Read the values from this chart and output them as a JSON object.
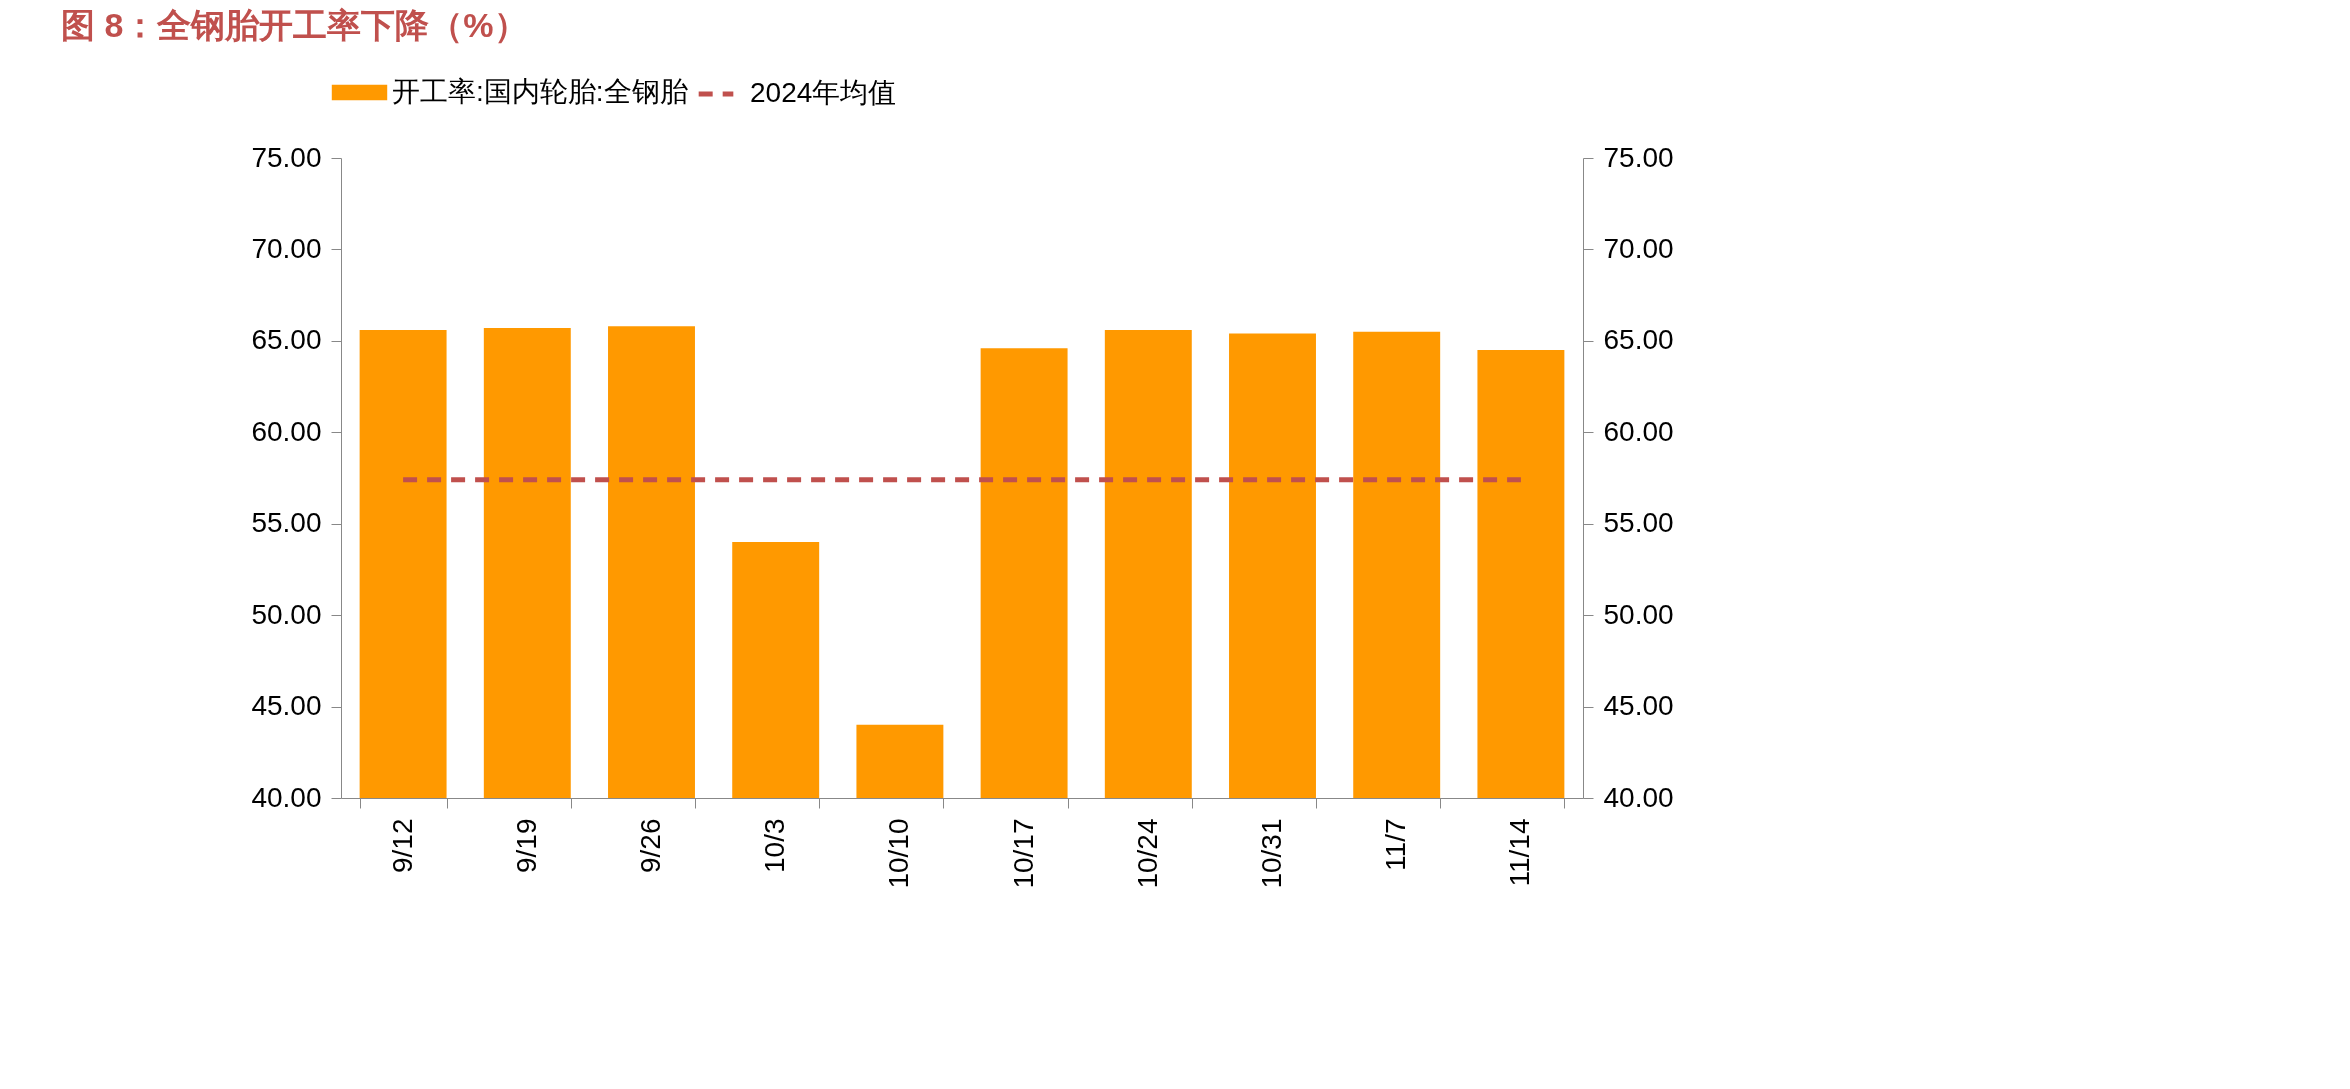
{
  "chart_data": {
    "type": "bar",
    "title": "图 8：全钢胎开工率下降（%）",
    "categories": [
      "9/12",
      "9/19",
      "9/26",
      "10/3",
      "10/10",
      "10/17",
      "10/24",
      "10/31",
      "11/7",
      "11/14"
    ],
    "series": [
      {
        "name": "开工率:国内轮胎:全钢胎",
        "color": "#ff9900",
        "values": [
          65.6,
          65.7,
          65.8,
          54.0,
          44.0,
          64.6,
          65.6,
          65.4,
          65.5,
          64.5
        ]
      },
      {
        "name": "2024年均值",
        "type": "line",
        "axis": "y2",
        "line_style": "dashed",
        "color": "#c0504d",
        "values": [
          57.4,
          57.4,
          57.4,
          57.4,
          57.4,
          57.4,
          57.4,
          57.4,
          57.4,
          57.4
        ]
      }
    ],
    "ylim": [
      40,
      75
    ],
    "yticks": [
      {
        "value": 40,
        "label": "40.00"
      },
      {
        "value": 45,
        "label": "45.00"
      },
      {
        "value": 50,
        "label": "50.00"
      },
      {
        "value": 55,
        "label": "55.00"
      },
      {
        "value": 60,
        "label": "60.00"
      },
      {
        "value": 65,
        "label": "65.00"
      },
      {
        "value": 70,
        "label": "70.00"
      },
      {
        "value": 75,
        "label": "75.00"
      }
    ],
    "y2lim": [
      40,
      75
    ],
    "y2ticks": [
      {
        "value": 40,
        "label": "40.00"
      },
      {
        "value": 45,
        "label": "45.00"
      },
      {
        "value": 50,
        "label": "50.00"
      },
      {
        "value": 55,
        "label": "55.00"
      },
      {
        "value": 60,
        "label": "60.00"
      },
      {
        "value": 65,
        "label": "65.00"
      },
      {
        "value": 70,
        "label": "70.00"
      },
      {
        "value": 75,
        "label": "75.00"
      }
    ],
    "legend": "top",
    "grid": false
  }
}
